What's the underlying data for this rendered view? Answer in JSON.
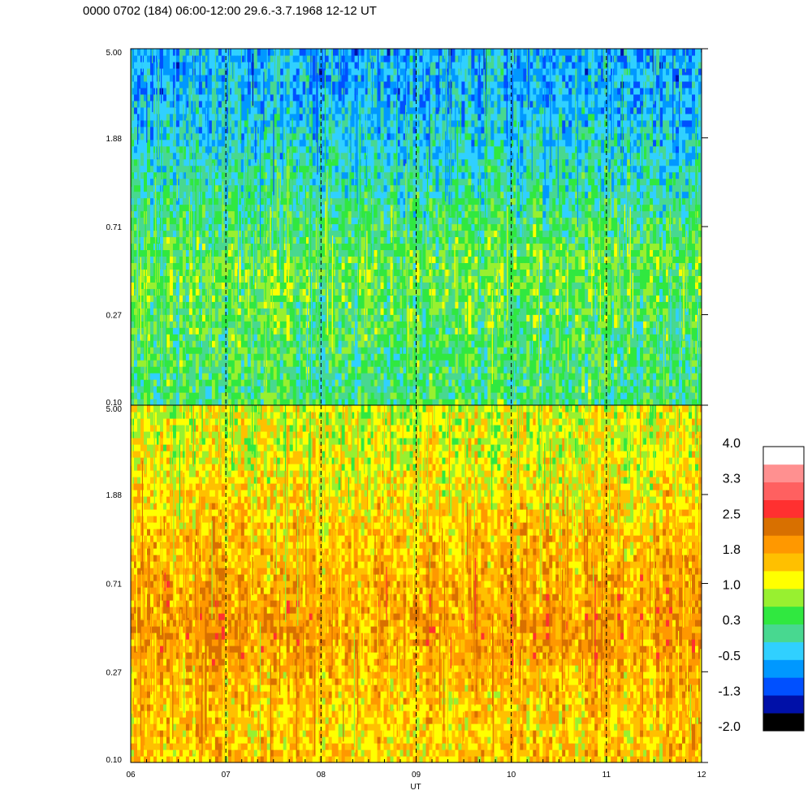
{
  "header": {
    "title": "0000 0702 (184) 06:00-12:00 29.6.-3.7.1968  12-12 UT"
  },
  "chart_data": [
    {
      "type": "heatmap",
      "panel": "top",
      "title": "",
      "xlabel": "",
      "ylabel": "",
      "x_range": [
        6,
        12
      ],
      "y_scale": "log",
      "y_range": [
        0.1,
        5.0
      ],
      "y_ticks": [
        "0.10",
        "0.27",
        "0.71",
        "1.88",
        "5.00"
      ],
      "dashed_vlines": [
        7,
        8,
        9,
        10,
        11
      ],
      "dominant_level_by_band": [
        {
          "y_band": "0.10-0.27",
          "level": 0.3
        },
        {
          "y_band": "0.27-0.71",
          "level": 0.6
        },
        {
          "y_band": "0.71-1.88",
          "level": 0.0
        },
        {
          "y_band": "1.88-5.00",
          "level": -0.5
        }
      ]
    },
    {
      "type": "heatmap",
      "panel": "bottom",
      "title": "",
      "xlabel": "UT",
      "ylabel": "",
      "x_range": [
        6,
        12
      ],
      "x_ticks": [
        "06",
        "07",
        "08",
        "09",
        "10",
        "11",
        "12"
      ],
      "y_scale": "log",
      "y_range": [
        0.1,
        5.0
      ],
      "y_ticks": [
        "0.10",
        "0.27",
        "0.71",
        "1.88",
        "5.00"
      ],
      "dashed_vlines": [
        7,
        8,
        9,
        10,
        11
      ],
      "dominant_level_by_band": [
        {
          "y_band": "0.10-0.27",
          "level": 1.5
        },
        {
          "y_band": "0.27-0.71",
          "level": 1.9
        },
        {
          "y_band": "0.71-1.88",
          "level": 1.6
        },
        {
          "y_band": "1.88-5.00",
          "level": 1.1
        }
      ]
    }
  ],
  "colorbar": {
    "labels": [
      "4.0",
      "3.3",
      "2.5",
      "1.8",
      "1.0",
      "0.3",
      "-0.5",
      "-1.3",
      "-2.0"
    ],
    "colors": [
      "#000000",
      "#0010a8",
      "#0050ff",
      "#0098ff",
      "#30d0ff",
      "#48d890",
      "#30e840",
      "#98f030",
      "#ffff00",
      "#ffc000",
      "#ff9800",
      "#d87000",
      "#ff3030",
      "#ff6060",
      "#ff9090",
      "#ffffff"
    ]
  }
}
